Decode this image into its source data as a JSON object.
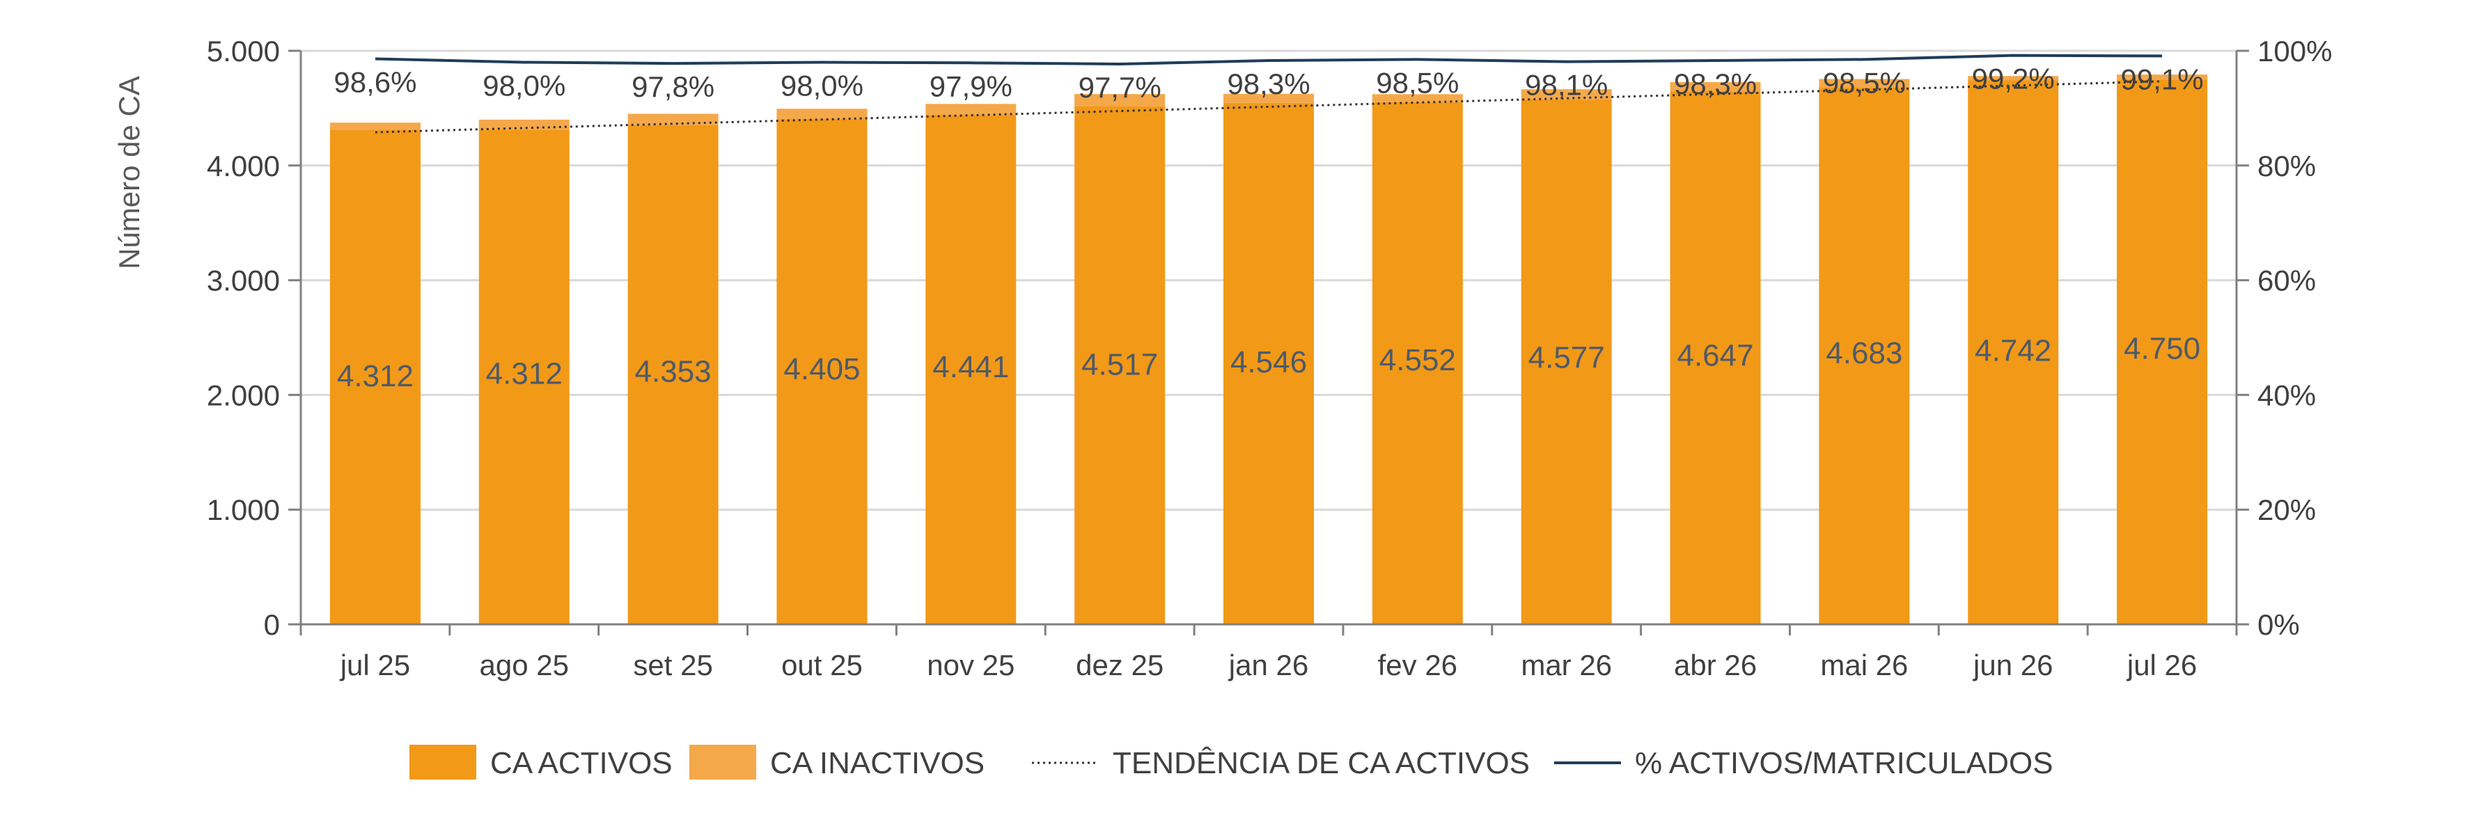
{
  "chart_data": {
    "type": "bar",
    "categories": [
      "jul 25",
      "ago 25",
      "set 25",
      "out 25",
      "nov 25",
      "dez 25",
      "jan 26",
      "fev 26",
      "mar 26",
      "abr 26",
      "mai 26",
      "jun 26",
      "jul 26"
    ],
    "series": [
      {
        "name": "CA ACTIVOS",
        "type": "bar",
        "axis": "left",
        "color": "#f29918",
        "values": [
          4312,
          4312,
          4353,
          4405,
          4441,
          4517,
          4546,
          4552,
          4577,
          4647,
          4683,
          4742,
          4750
        ],
        "labels": [
          "4.312",
          "4.312",
          "4.353",
          "4.405",
          "4.441",
          "4.517",
          "4.546",
          "4.552",
          "4.577",
          "4.647",
          "4.683",
          "4.742",
          "4.750"
        ]
      },
      {
        "name": "CA INACTIVOS",
        "type": "bar",
        "stacked": true,
        "axis": "left",
        "color": "#f5a84a",
        "values": [
          62,
          88,
          98,
          90,
          96,
          106,
          79,
          70,
          88,
          80,
          71,
          38,
          43
        ]
      },
      {
        "name": "TENDÊNCIA DE CA ACTIVOS",
        "type": "line",
        "style": "dotted",
        "axis": "left",
        "color": "#333333",
        "values": [
          4290,
          4327,
          4364,
          4401,
          4438,
          4475,
          4512,
          4549,
          4586,
          4623,
          4660,
          4697,
          4734
        ]
      },
      {
        "name": "% ACTIVOS/MATRICULADOS",
        "type": "line",
        "axis": "right",
        "color": "#1f3d5a",
        "values": [
          98.6,
          98.0,
          97.8,
          98.0,
          97.9,
          97.7,
          98.3,
          98.5,
          98.1,
          98.3,
          98.5,
          99.2,
          99.1
        ],
        "labels": [
          "98,6%",
          "98,0%",
          "97,8%",
          "98,0%",
          "97,9%",
          "97,7%",
          "98,3%",
          "98,5%",
          "98,1%",
          "98,3%",
          "98,5%",
          "99,2%",
          "99,1%"
        ]
      }
    ],
    "ylabel": "Número de CA",
    "ylim": [
      0,
      5000
    ],
    "yticks": [
      "0",
      "1.000",
      "2.000",
      "3.000",
      "4.000",
      "5.000"
    ],
    "y2lim": [
      0,
      100
    ],
    "y2ticks": [
      "0%",
      "20%",
      "40%",
      "60%",
      "80%",
      "100%"
    ],
    "grid": true,
    "legend": "bottom"
  }
}
